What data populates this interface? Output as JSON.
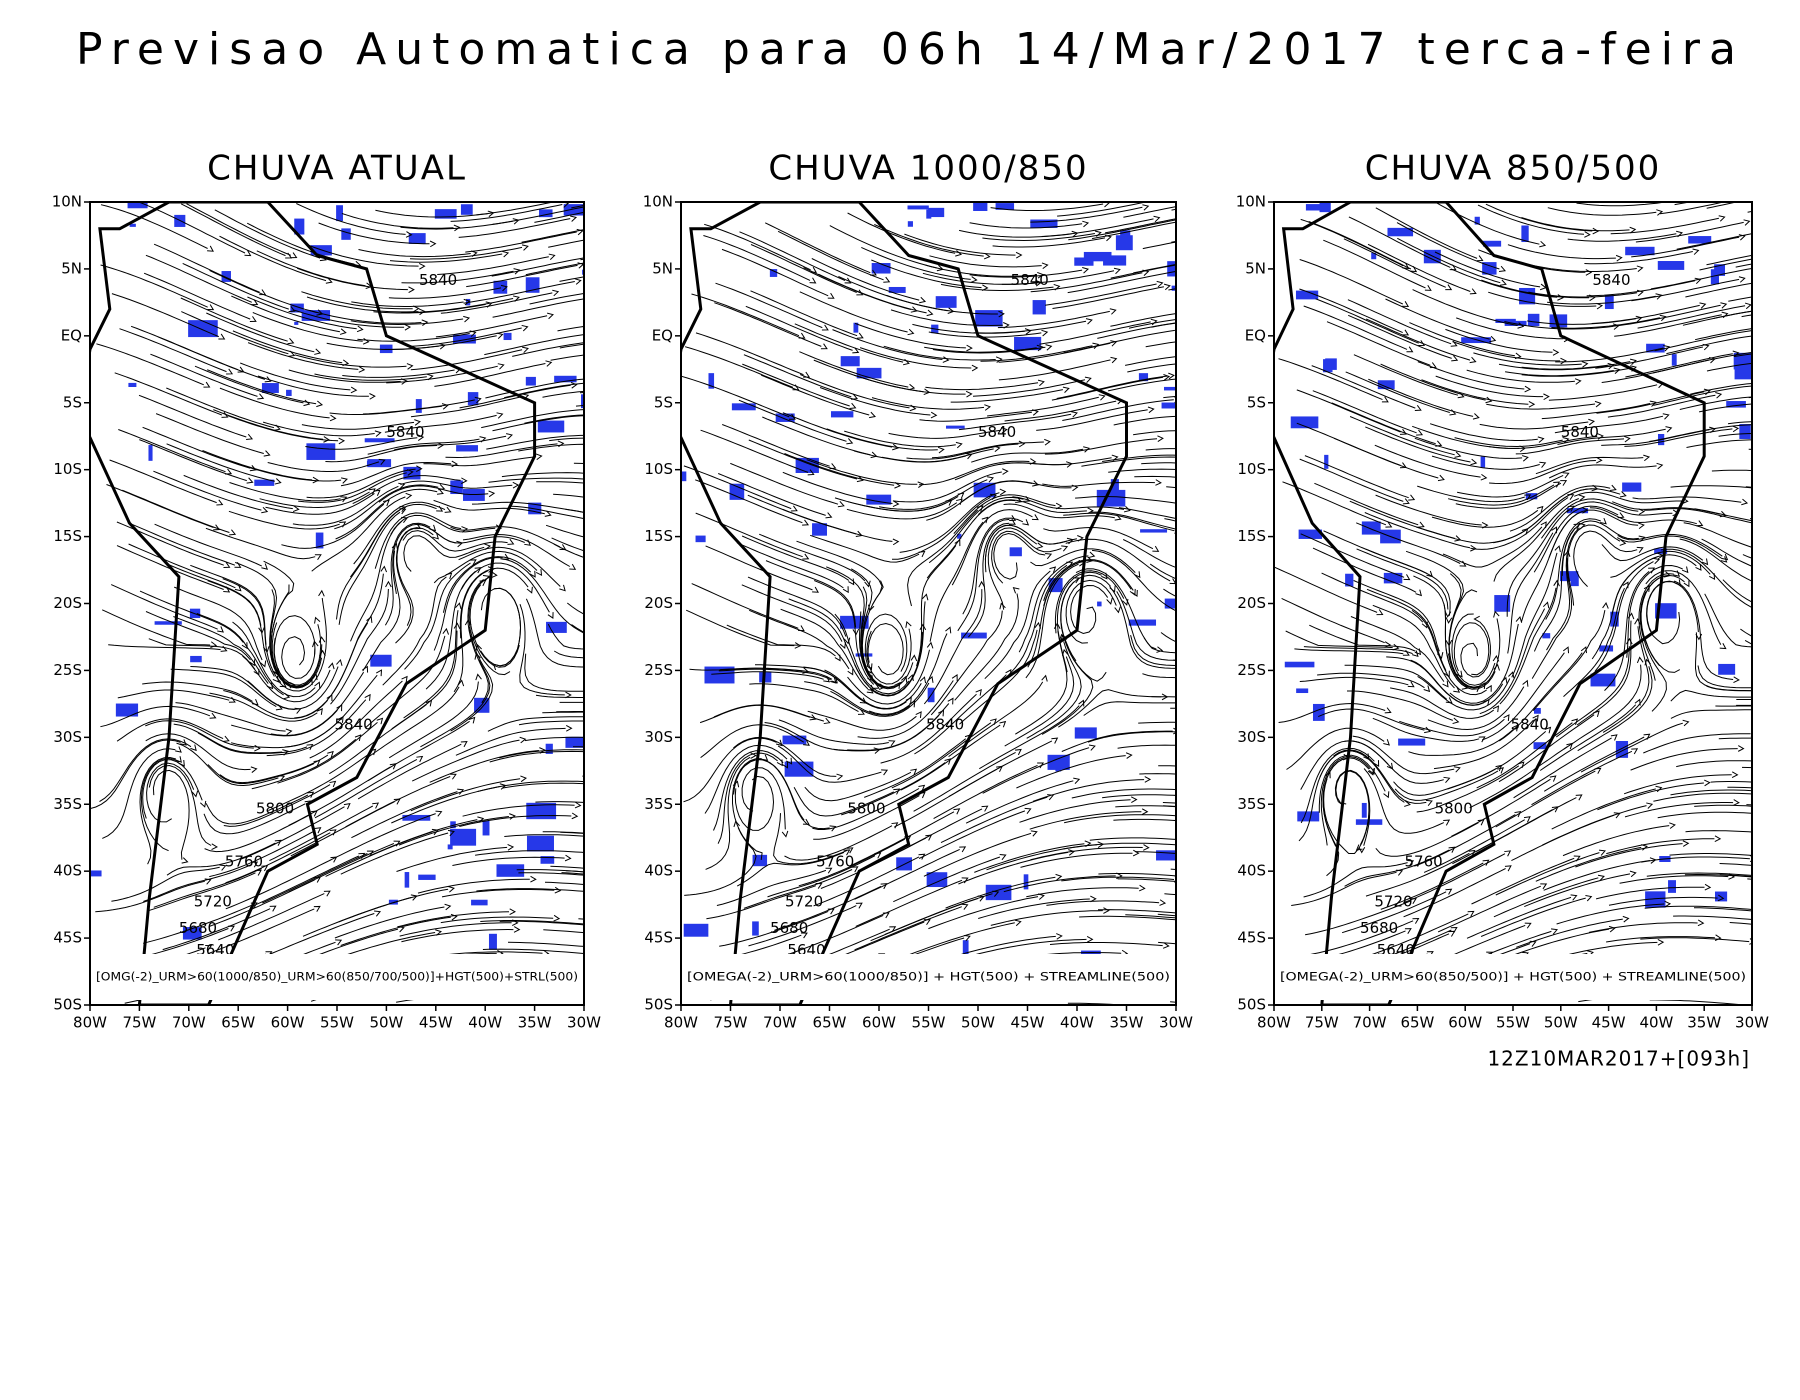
{
  "title": "Previsao Automatica para 06h 14/Mar/2017 terca-feira",
  "panels": [
    {
      "title": "CHUVA ATUAL",
      "caption": "[OMG(-2)_URM>60(1000/850)_URM>60(850/700/500)]+HGT(500)+STRL(500)",
      "contour_labels": [
        "5840",
        "5840",
        "5840",
        "5800",
        "5760",
        "5720",
        "5680",
        "5640"
      ]
    },
    {
      "title": "CHUVA 1000/850",
      "caption": "[OMEGA(-2)_URM>60(1000/850)] + HGT(500) + STREAMLINE(500)",
      "contour_labels": [
        "5840",
        "5840",
        "5840",
        "5800",
        "5760",
        "5720",
        "5680",
        "5640"
      ]
    },
    {
      "title": "CHUVA 850/500",
      "caption": "[OMEGA(-2)_URM>60(850/500)] + HGT(500) + STREAMLINE(500)",
      "contour_labels": [
        "5840",
        "5840",
        "5840",
        "5800",
        "5760",
        "5720",
        "5680",
        "5640"
      ]
    }
  ],
  "lat_labels": [
    "10N",
    "5N",
    "EQ",
    "5S",
    "10S",
    "15S",
    "20S",
    "25S",
    "30S",
    "35S",
    "40S",
    "45S",
    "50S"
  ],
  "lon_labels": [
    "80W",
    "75W",
    "70W",
    "65W",
    "60W",
    "55W",
    "50W",
    "45W",
    "40W",
    "35W",
    "30W"
  ],
  "footer": "12Z10MAR2017+[093h]"
}
